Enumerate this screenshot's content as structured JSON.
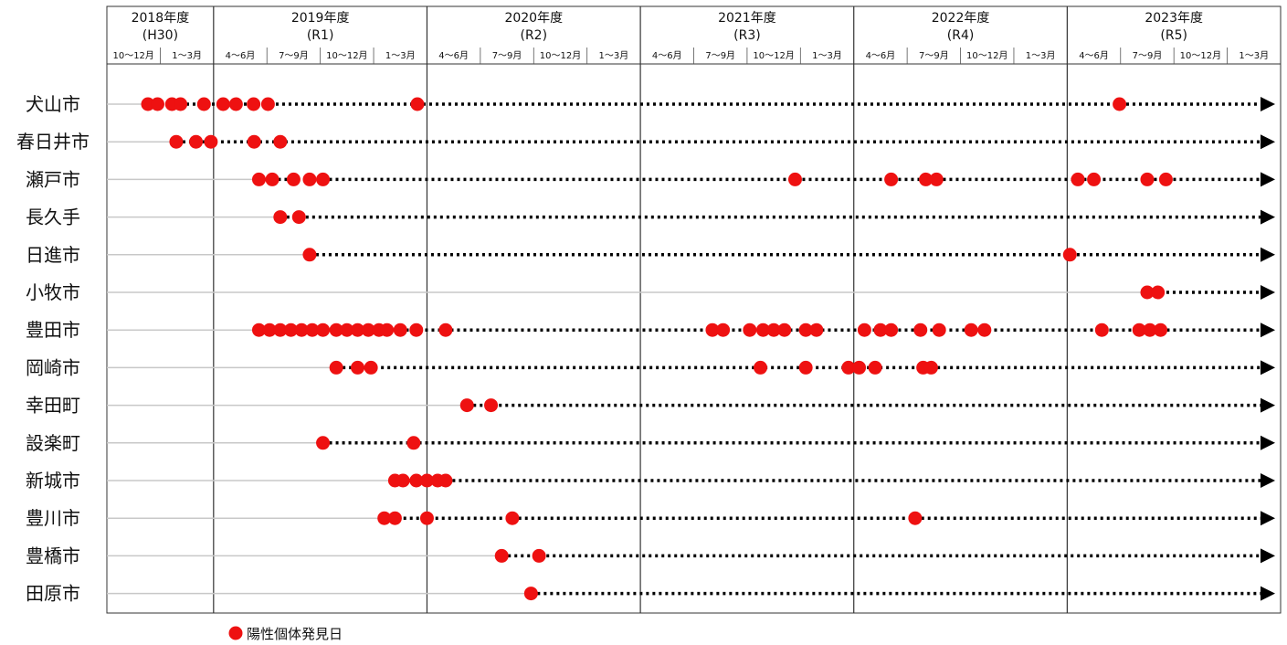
{
  "chart_data": {
    "type": "scatter",
    "title": "",
    "fiscal_years": [
      {
        "label": "2018年度",
        "sub": "(H30)"
      },
      {
        "label": "2019年度",
        "sub": "(R1)"
      },
      {
        "label": "2020年度",
        "sub": "(R2)"
      },
      {
        "label": "2021年度",
        "sub": "(R3)"
      },
      {
        "label": "2022年度",
        "sub": "(R4)"
      },
      {
        "label": "2023年度",
        "sub": "(R5)"
      }
    ],
    "quarters": [
      "10～12月",
      "1～3月",
      "4～6月",
      "7～9月",
      "10～12月",
      "1～3月",
      "4～6月",
      "7～9月",
      "10～12月",
      "1～3月",
      "4～6月",
      "7～9月",
      "10～12月",
      "1～3月",
      "4～6月",
      "7～9月",
      "10～12月",
      "1～3月",
      "4～6月",
      "7～9月",
      "10～12月",
      "1～3月"
    ],
    "x_range_quarters": [
      0,
      22
    ],
    "legend": {
      "label": "陽性個体発見日",
      "position": "bottom-left"
    },
    "marker_color": "#ee1111",
    "rows": [
      {
        "name": "犬山市",
        "first": 0.77,
        "points": [
          0.77,
          0.95,
          1.22,
          1.38,
          1.82,
          2.18,
          2.42,
          2.75,
          3.02,
          5.82,
          18.98
        ]
      },
      {
        "name": "春日井市",
        "first": 1.3,
        "points": [
          1.3,
          1.67,
          1.95,
          2.76,
          3.25
        ]
      },
      {
        "name": "瀬戸市",
        "first": 2.85,
        "points": [
          2.85,
          3.1,
          3.5,
          3.8,
          4.05,
          12.9,
          14.7,
          15.35,
          15.55,
          18.2,
          18.5,
          19.5,
          19.85
        ]
      },
      {
        "name": "長久手",
        "first": 3.25,
        "points": [
          3.25,
          3.6
        ]
      },
      {
        "name": "日進市",
        "first": 3.8,
        "points": [
          3.8,
          18.05
        ]
      },
      {
        "name": "小牧市",
        "first": 19.5,
        "points": [
          19.5,
          19.7
        ]
      },
      {
        "name": "豊田市",
        "first": 2.85,
        "points": [
          2.85,
          3.05,
          3.25,
          3.45,
          3.65,
          3.85,
          4.05,
          4.3,
          4.5,
          4.7,
          4.9,
          5.1,
          5.25,
          5.5,
          5.8,
          6.35,
          11.35,
          11.55,
          12.05,
          12.3,
          12.5,
          12.7,
          13.1,
          13.3,
          14.2,
          14.5,
          14.7,
          15.25,
          15.6,
          16.2,
          16.45,
          18.65,
          19.35,
          19.55,
          19.75
        ]
      },
      {
        "name": "岡崎市",
        "first": 4.3,
        "points": [
          4.3,
          4.7,
          4.95,
          12.25,
          13.1,
          13.9,
          14.1,
          14.4,
          15.3,
          15.45
        ]
      },
      {
        "name": "幸田町",
        "first": 6.75,
        "points": [
          6.75,
          7.2
        ]
      },
      {
        "name": "設楽町",
        "first": 4.05,
        "points": [
          4.05,
          5.75
        ]
      },
      {
        "name": "新城市",
        "first": 5.4,
        "points": [
          5.4,
          5.55,
          5.8,
          6.0,
          6.2,
          6.35
        ]
      },
      {
        "name": "豊川市",
        "first": 5.2,
        "points": [
          5.2,
          5.4,
          6.0,
          7.6,
          15.15
        ]
      },
      {
        "name": "豊橋市",
        "first": 7.4,
        "points": [
          7.4,
          8.1
        ]
      },
      {
        "name": "田原市",
        "first": 7.95,
        "points": [
          7.95
        ]
      }
    ]
  }
}
